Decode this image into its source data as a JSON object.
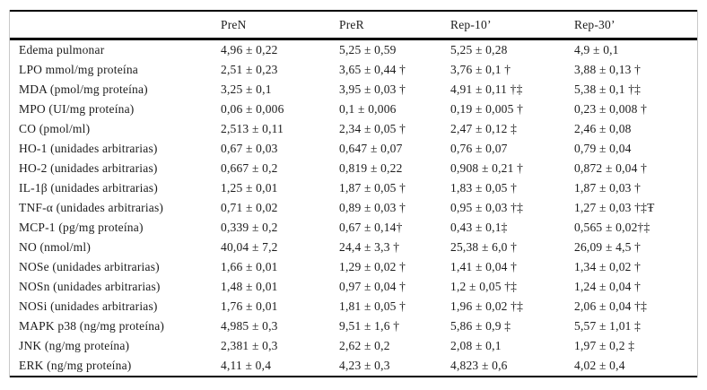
{
  "colors": {
    "background": "#ffffff",
    "rule": "#000000",
    "text": "#1c1c1c",
    "frame_line": "#c9c9c9"
  },
  "table": {
    "columns": [
      "",
      "PreN",
      "PreR",
      "Rep-10’",
      "Rep-30’"
    ],
    "rows": [
      {
        "label": "Edema pulmonar",
        "values": [
          "4,96 ± 0,22",
          "5,25 ± 0,59",
          "5,25 ± 0,28",
          "4,9 ± 0,1"
        ]
      },
      {
        "label": "LPO mmol/mg proteína",
        "values": [
          "2,51 ± 0,23",
          "3,65 ± 0,44 †",
          "3,76 ± 0,1 †",
          "3,88 ± 0,13 †"
        ]
      },
      {
        "label": "MDA (pmol/mg proteína)",
        "values": [
          "3,25 ± 0,1",
          "3,95 ± 0,03 †",
          "4,91 ± 0,11 †‡",
          "5,38 ± 0,1 †‡"
        ]
      },
      {
        "label": "MPO (UI/mg proteína)",
        "values": [
          "0,06 ± 0,006",
          "0,1 ± 0,006",
          "0,19 ± 0,005 †",
          "0,23 ± 0,008 †"
        ]
      },
      {
        "label": "CO (pmol/ml)",
        "values": [
          "2,513 ± 0,11",
          "2,34 ± 0,05 †",
          "2,47 ± 0,12 ‡",
          "2,46 ± 0,08"
        ]
      },
      {
        "label": "HO-1 (unidades arbitrarias)",
        "values": [
          "0,67 ± 0,03",
          "0,647 ± 0,07",
          "0,76 ± 0,07",
          "0,79 ± 0,04"
        ]
      },
      {
        "label": "HO-2 (unidades arbitrarias)",
        "values": [
          "0,667 ± 0,2",
          "0,819 ± 0,22",
          "0,908 ± 0,21 †",
          "0,872 ± 0,04 †"
        ]
      },
      {
        "label": "IL-1β (unidades arbitrarias)",
        "values": [
          "1,25 ± 0,01",
          "1,87 ± 0,05 †",
          "1,83 ± 0,05 †",
          "1,87 ± 0,03 †"
        ]
      },
      {
        "label": "TNF-α (unidades arbitrarias)",
        "values": [
          "0,71 ± 0,02",
          "0,89 ± 0,03 †",
          "0,95 ± 0,03 †‡",
          "1,27 ± 0,03 †‡Ŧ"
        ]
      },
      {
        "label": "MCP-1 (pg/mg proteína)",
        "values": [
          "0,339 ± 0,2",
          "0,67 ± 0,14†",
          "0,43 ± 0,1‡",
          "0,565 ± 0,02†‡"
        ]
      },
      {
        "label": "NO (nmol/ml)",
        "values": [
          "40,04 ± 7,2",
          "24,4 ± 3,3 †",
          "25,38 ± 6,0 †",
          "26,09 ± 4,5 †"
        ]
      },
      {
        "label": "NOSe (unidades arbitrarias)",
        "values": [
          "1,66 ± 0,01",
          "1,29 ± 0,02 †",
          "1,41 ± 0,04 †",
          "1,34 ± 0,02 †"
        ]
      },
      {
        "label": "NOSn (unidades arbitrarias)",
        "values": [
          "1,48 ± 0,01",
          "0,97 ± 0,04 †",
          "1,2 ± 0,05 †‡",
          "1,24 ± 0,04 †"
        ]
      },
      {
        "label": "NOSi (unidades arbitrarias)",
        "values": [
          "1,76 ± 0,01",
          "1,81 ± 0,05 †",
          "1,96 ± 0,02 †‡",
          "2,06 ± 0,04 †‡"
        ]
      },
      {
        "label": "MAPK p38 (ng/mg proteína)",
        "values": [
          "4,985 ± 0,3",
          "9,51 ± 1,6 †",
          "5,86 ± 0,9 ‡",
          "5,57 ± 1,01 ‡"
        ]
      },
      {
        "label": "JNK (ng/mg proteína)",
        "values": [
          "2,381 ± 0,3",
          "2,62 ± 0,2",
          "2,08 ± 0,1",
          "1,97 ± 0,2 ‡"
        ]
      },
      {
        "label": "ERK (ng/mg proteína)",
        "values": [
          "4,11 ± 0,4",
          "4,23 ± 0,3",
          "4,823 ± 0,6",
          "4,02 ± 0,4"
        ]
      }
    ]
  }
}
